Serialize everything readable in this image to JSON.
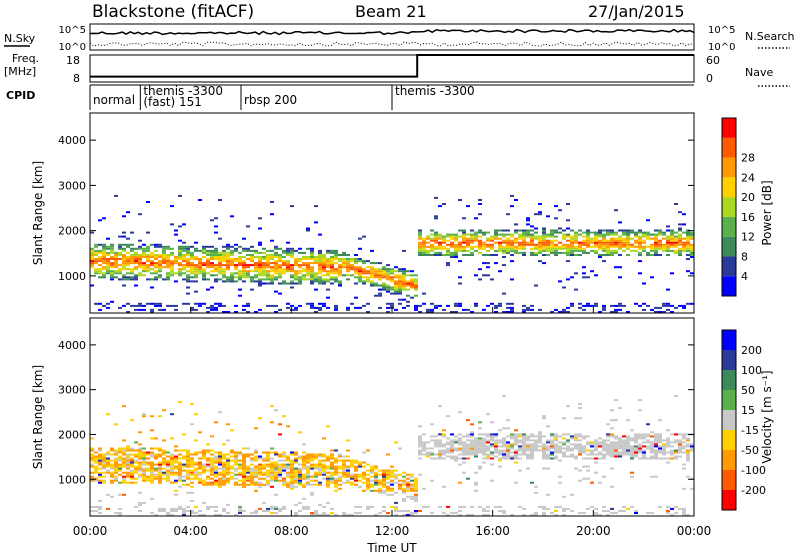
{
  "header": {
    "station": "Blackstone (fitACF)",
    "beam": "Beam 21",
    "date": "27/Jan/2015"
  },
  "left_labels": {
    "nsky": "N.Sky",
    "freq_line1": "Freq.",
    "freq_line2": "[MHz]",
    "cpid": "CPID"
  },
  "right_labels": {
    "nsearch": "N.Search",
    "nave": "Nave"
  },
  "colors": {
    "power": [
      "#0000ff",
      "#2a3a9a",
      "#3c8a5a",
      "#5ab04a",
      "#aad820",
      "#ffd000",
      "#ff9a00",
      "#ff5a00",
      "#ff0000"
    ],
    "velocity": [
      "#0000ff",
      "#2a3a9a",
      "#3c8a5a",
      "#5ab04a",
      "#c8c8c8",
      "#ffd000",
      "#ff9a00",
      "#ff5a00",
      "#ff0000"
    ]
  },
  "chart_data": [
    {
      "type": "line",
      "name": "noise-panel",
      "x_range": [
        0,
        24
      ],
      "yticks_left": [
        "10^5",
        "10^0"
      ],
      "yticks_right": [
        "10^5",
        "10^0"
      ]
    },
    {
      "type": "line",
      "name": "frequency-nave-panel",
      "x_range": [
        0,
        24
      ],
      "yticks_left": [
        "18",
        "8"
      ],
      "yticks_right": [
        "60",
        "0"
      ],
      "frequency": {
        "x": [
          0,
          13,
          13,
          24
        ],
        "y": [
          10,
          10,
          18,
          18
        ]
      }
    },
    {
      "type": "table",
      "name": "cpid-panel",
      "segments": [
        {
          "start": 0,
          "label": "normal"
        },
        {
          "start": 2,
          "label": "themis -3300"
        },
        {
          "start": 2,
          "label": "(fast) 151"
        },
        {
          "start": 6,
          "label": "rbsp 200"
        },
        {
          "start": 12,
          "label": "themis -3300"
        }
      ]
    },
    {
      "type": "heatmap",
      "name": "power-panel",
      "ylabel": "Slant Range [km]",
      "yticks": [
        1000,
        2000,
        3000,
        4000
      ],
      "ylim": [
        180,
        4600
      ],
      "x_range": [
        0,
        24
      ],
      "colorbar_label": "Power [dB]",
      "colorbar_ticks": [
        "4",
        "8",
        "12",
        "16",
        "20",
        "24",
        "28"
      ]
    },
    {
      "type": "heatmap",
      "name": "velocity-panel",
      "ylabel": "Slant Range [km]",
      "yticks": [
        1000,
        2000,
        3000,
        4000
      ],
      "ylim": [
        180,
        4600
      ],
      "x_range": [
        0,
        24
      ],
      "colorbar_label": "Velocity [m s⁻¹]",
      "colorbar_ticks": [
        "200",
        "100",
        "50",
        "15",
        "-15",
        "-50",
        "-100",
        "-200"
      ]
    }
  ],
  "x_axis": {
    "title": "Time UT",
    "ticks": [
      "00:00",
      "04:00",
      "08:00",
      "12:00",
      "16:00",
      "20:00",
      "00:00"
    ]
  }
}
